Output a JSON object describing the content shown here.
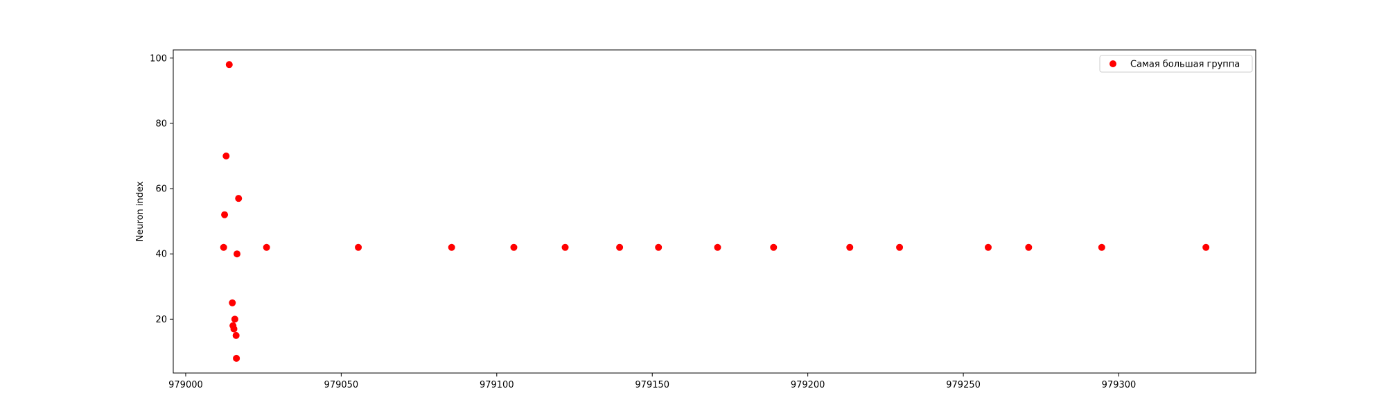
{
  "chart_data": {
    "type": "scatter",
    "title": "",
    "xlabel": "",
    "ylabel": "Neuron index",
    "xlim": [
      978996,
      979344
    ],
    "ylim": [
      3.5,
      102.5
    ],
    "xticks": [
      979000,
      979050,
      979100,
      979150,
      979200,
      979250,
      979300
    ],
    "yticks": [
      20,
      40,
      60,
      80,
      100
    ],
    "grid": false,
    "legend_position": "top-right",
    "series": [
      {
        "name": "Самая большая группа",
        "color": "#ff0000",
        "points": [
          {
            "x": 979014.0,
            "y": 98
          },
          {
            "x": 979013.0,
            "y": 70
          },
          {
            "x": 979017.0,
            "y": 57
          },
          {
            "x": 979012.5,
            "y": 52
          },
          {
            "x": 979012.2,
            "y": 42
          },
          {
            "x": 979016.5,
            "y": 40
          },
          {
            "x": 979015.0,
            "y": 25
          },
          {
            "x": 979015.8,
            "y": 20
          },
          {
            "x": 979015.2,
            "y": 18
          },
          {
            "x": 979015.5,
            "y": 17
          },
          {
            "x": 979016.2,
            "y": 15
          },
          {
            "x": 979016.3,
            "y": 8
          },
          {
            "x": 979026.0,
            "y": 42
          },
          {
            "x": 979055.5,
            "y": 42
          },
          {
            "x": 979085.5,
            "y": 42
          },
          {
            "x": 979105.5,
            "y": 42
          },
          {
            "x": 979122.0,
            "y": 42
          },
          {
            "x": 979139.5,
            "y": 42
          },
          {
            "x": 979152.0,
            "y": 42
          },
          {
            "x": 979171.0,
            "y": 42
          },
          {
            "x": 979189.0,
            "y": 42
          },
          {
            "x": 979213.5,
            "y": 42
          },
          {
            "x": 979229.5,
            "y": 42
          },
          {
            "x": 979258.0,
            "y": 42
          },
          {
            "x": 979271.0,
            "y": 42
          },
          {
            "x": 979294.5,
            "y": 42
          },
          {
            "x": 979328.0,
            "y": 42
          }
        ]
      }
    ]
  }
}
